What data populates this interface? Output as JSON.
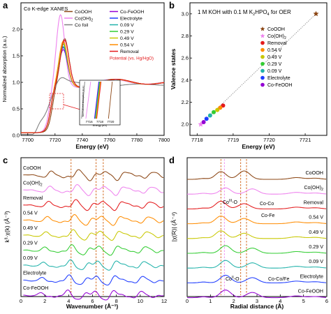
{
  "colors": {
    "CoOOH": "#8B4513",
    "CoOH2": "#EE82EE",
    "Removal": "#E41A1C",
    "0.54 V": "#FF8C00",
    "0.49 V": "#C8C800",
    "0.29 V": "#32CD32",
    "0.09 V": "#20B2AA",
    "Electrolyte": "#1E3CFF",
    "Co-FeOOH": "#9400D3",
    "Co foil": "#808080",
    "grid": "#cc5500"
  },
  "panels": {
    "a": {
      "letter": "a"
    },
    "b": {
      "letter": "b"
    },
    "c": {
      "letter": "c"
    },
    "d": {
      "letter": "d"
    }
  },
  "chart_data": [
    {
      "panel": "a",
      "type": "line",
      "title": "Co K-edge XANES",
      "xlabel": "Energy (eV)",
      "ylabel": "Normalized absorption (a.u.)",
      "xlim": [
        7695,
        7800
      ],
      "ylim": [
        0,
        2.5
      ],
      "xticks": [
        7700,
        7720,
        7740,
        7760,
        7780,
        7800
      ],
      "yticks": [
        0.0,
        0.5,
        1.0,
        1.5,
        2.0
      ],
      "legend": [
        "CoOOH",
        "Co(OH)2",
        "Co foil",
        "Co-FeOOH",
        "Electrolyte",
        "0.09 V",
        "0.29 V",
        "0.49 V",
        "0.54 V",
        "Removal",
        "Potential (vs. Hg/HgO)"
      ],
      "series": [
        {
          "name": "CoOOH",
          "edge": 7718,
          "peak_x": 7727,
          "peak_y": 1.83
        },
        {
          "name": "Co(OH)2",
          "edge": 7716,
          "peak_x": 7724,
          "peak_y": 2.28
        },
        {
          "name": "Co foil",
          "edge": 7709,
          "peak_x": 7724,
          "peak_y": 1.05
        },
        {
          "name": "Co-FeOOH",
          "edge": 7717,
          "peak_x": 7726,
          "peak_y": 1.62
        },
        {
          "name": "Electrolyte",
          "edge": 7717,
          "peak_x": 7726,
          "peak_y": 1.66
        },
        {
          "name": "0.09 V",
          "edge": 7717,
          "peak_x": 7726,
          "peak_y": 1.68
        },
        {
          "name": "0.29 V",
          "edge": 7717,
          "peak_x": 7726,
          "peak_y": 1.72
        },
        {
          "name": "0.49 V",
          "edge": 7717,
          "peak_x": 7726,
          "peak_y": 1.75
        },
        {
          "name": "0.54 V",
          "edge": 7717,
          "peak_x": 7726,
          "peak_y": 1.78
        },
        {
          "name": "Removal",
          "edge": 7717,
          "peak_x": 7727,
          "peak_y": 1.8
        }
      ],
      "inset": {
        "xticks": [
          7716,
          7718,
          7720
        ]
      }
    },
    {
      "panel": "b",
      "type": "scatter",
      "title": "1 M KOH with 0.1 M K2HPO4 for OER",
      "xlabel": "Energy (eV)",
      "ylabel": "Valence states",
      "xlim": [
        7717.8,
        7721.6
      ],
      "ylim": [
        1.9,
        3.1
      ],
      "xticks": [
        7718,
        7719,
        7720,
        7721
      ],
      "yticks": [
        2.0,
        2.2,
        2.4,
        2.6,
        2.8,
        3.0
      ],
      "points": [
        {
          "name": "CoOOH",
          "x": 7721.3,
          "y": 3.0,
          "marker": "star"
        },
        {
          "name": "Co(OH)2",
          "x": 7718.1,
          "y": 2.0,
          "marker": "star"
        },
        {
          "name": "Removal",
          "x": 7718.72,
          "y": 2.17,
          "marker": "circle"
        },
        {
          "name": "0.54 V",
          "x": 7718.64,
          "y": 2.15,
          "marker": "circle"
        },
        {
          "name": "0.49 V",
          "x": 7718.56,
          "y": 2.13,
          "marker": "circle"
        },
        {
          "name": "0.29 V",
          "x": 7718.46,
          "y": 2.11,
          "marker": "circle"
        },
        {
          "name": "0.09 V",
          "x": 7718.36,
          "y": 2.08,
          "marker": "circle"
        },
        {
          "name": "Electrolyte",
          "x": 7718.26,
          "y": 2.05,
          "marker": "circle"
        },
        {
          "name": "Co-FeOOH",
          "x": 7718.18,
          "y": 2.02,
          "marker": "circle"
        }
      ],
      "legend": [
        "CoOOH",
        "Co(OH)2",
        "Removal",
        "0.54 V",
        "0.49 V",
        "0.29 V",
        "0.09 V",
        "Electrolyte",
        "Co-FeOOH"
      ]
    },
    {
      "panel": "c",
      "type": "line",
      "xlabel": "Wavenumber (Å⁻¹)",
      "ylabel": "k³·χ(k) (Å⁻³)",
      "xlim": [
        0,
        12
      ],
      "xticks": [
        0,
        2,
        4,
        6,
        8,
        10,
        12
      ],
      "reference_lines": [
        4.2,
        6.3,
        6.9
      ],
      "series": [
        "CoOOH",
        "Co(OH)2",
        "Removal",
        "0.54 V",
        "0.49 V",
        "0.29 V",
        "0.09 V",
        "Electrolyte",
        "Co-FeOOH"
      ]
    },
    {
      "panel": "d",
      "type": "line",
      "xlabel": "Radial distance (Å)",
      "ylabel": "|χ(R)| (Å⁻⁴)",
      "xlim": [
        0,
        6
      ],
      "xticks": [
        0,
        1,
        2,
        3,
        4,
        5,
        6
      ],
      "reference_lines": [
        1.45,
        1.6,
        2.3,
        2.55
      ],
      "series": [
        "CoOOH",
        "Co(OH)2",
        "Removal",
        "0.54 V",
        "0.49 V",
        "0.29 V",
        "0.09 V",
        "Electrolyte",
        "Co-FeOOH"
      ],
      "annotations": [
        "Co^III-O",
        "Co-Co",
        "Co-Fe",
        "Co^II-O",
        "Co-Co/Fe"
      ]
    }
  ]
}
